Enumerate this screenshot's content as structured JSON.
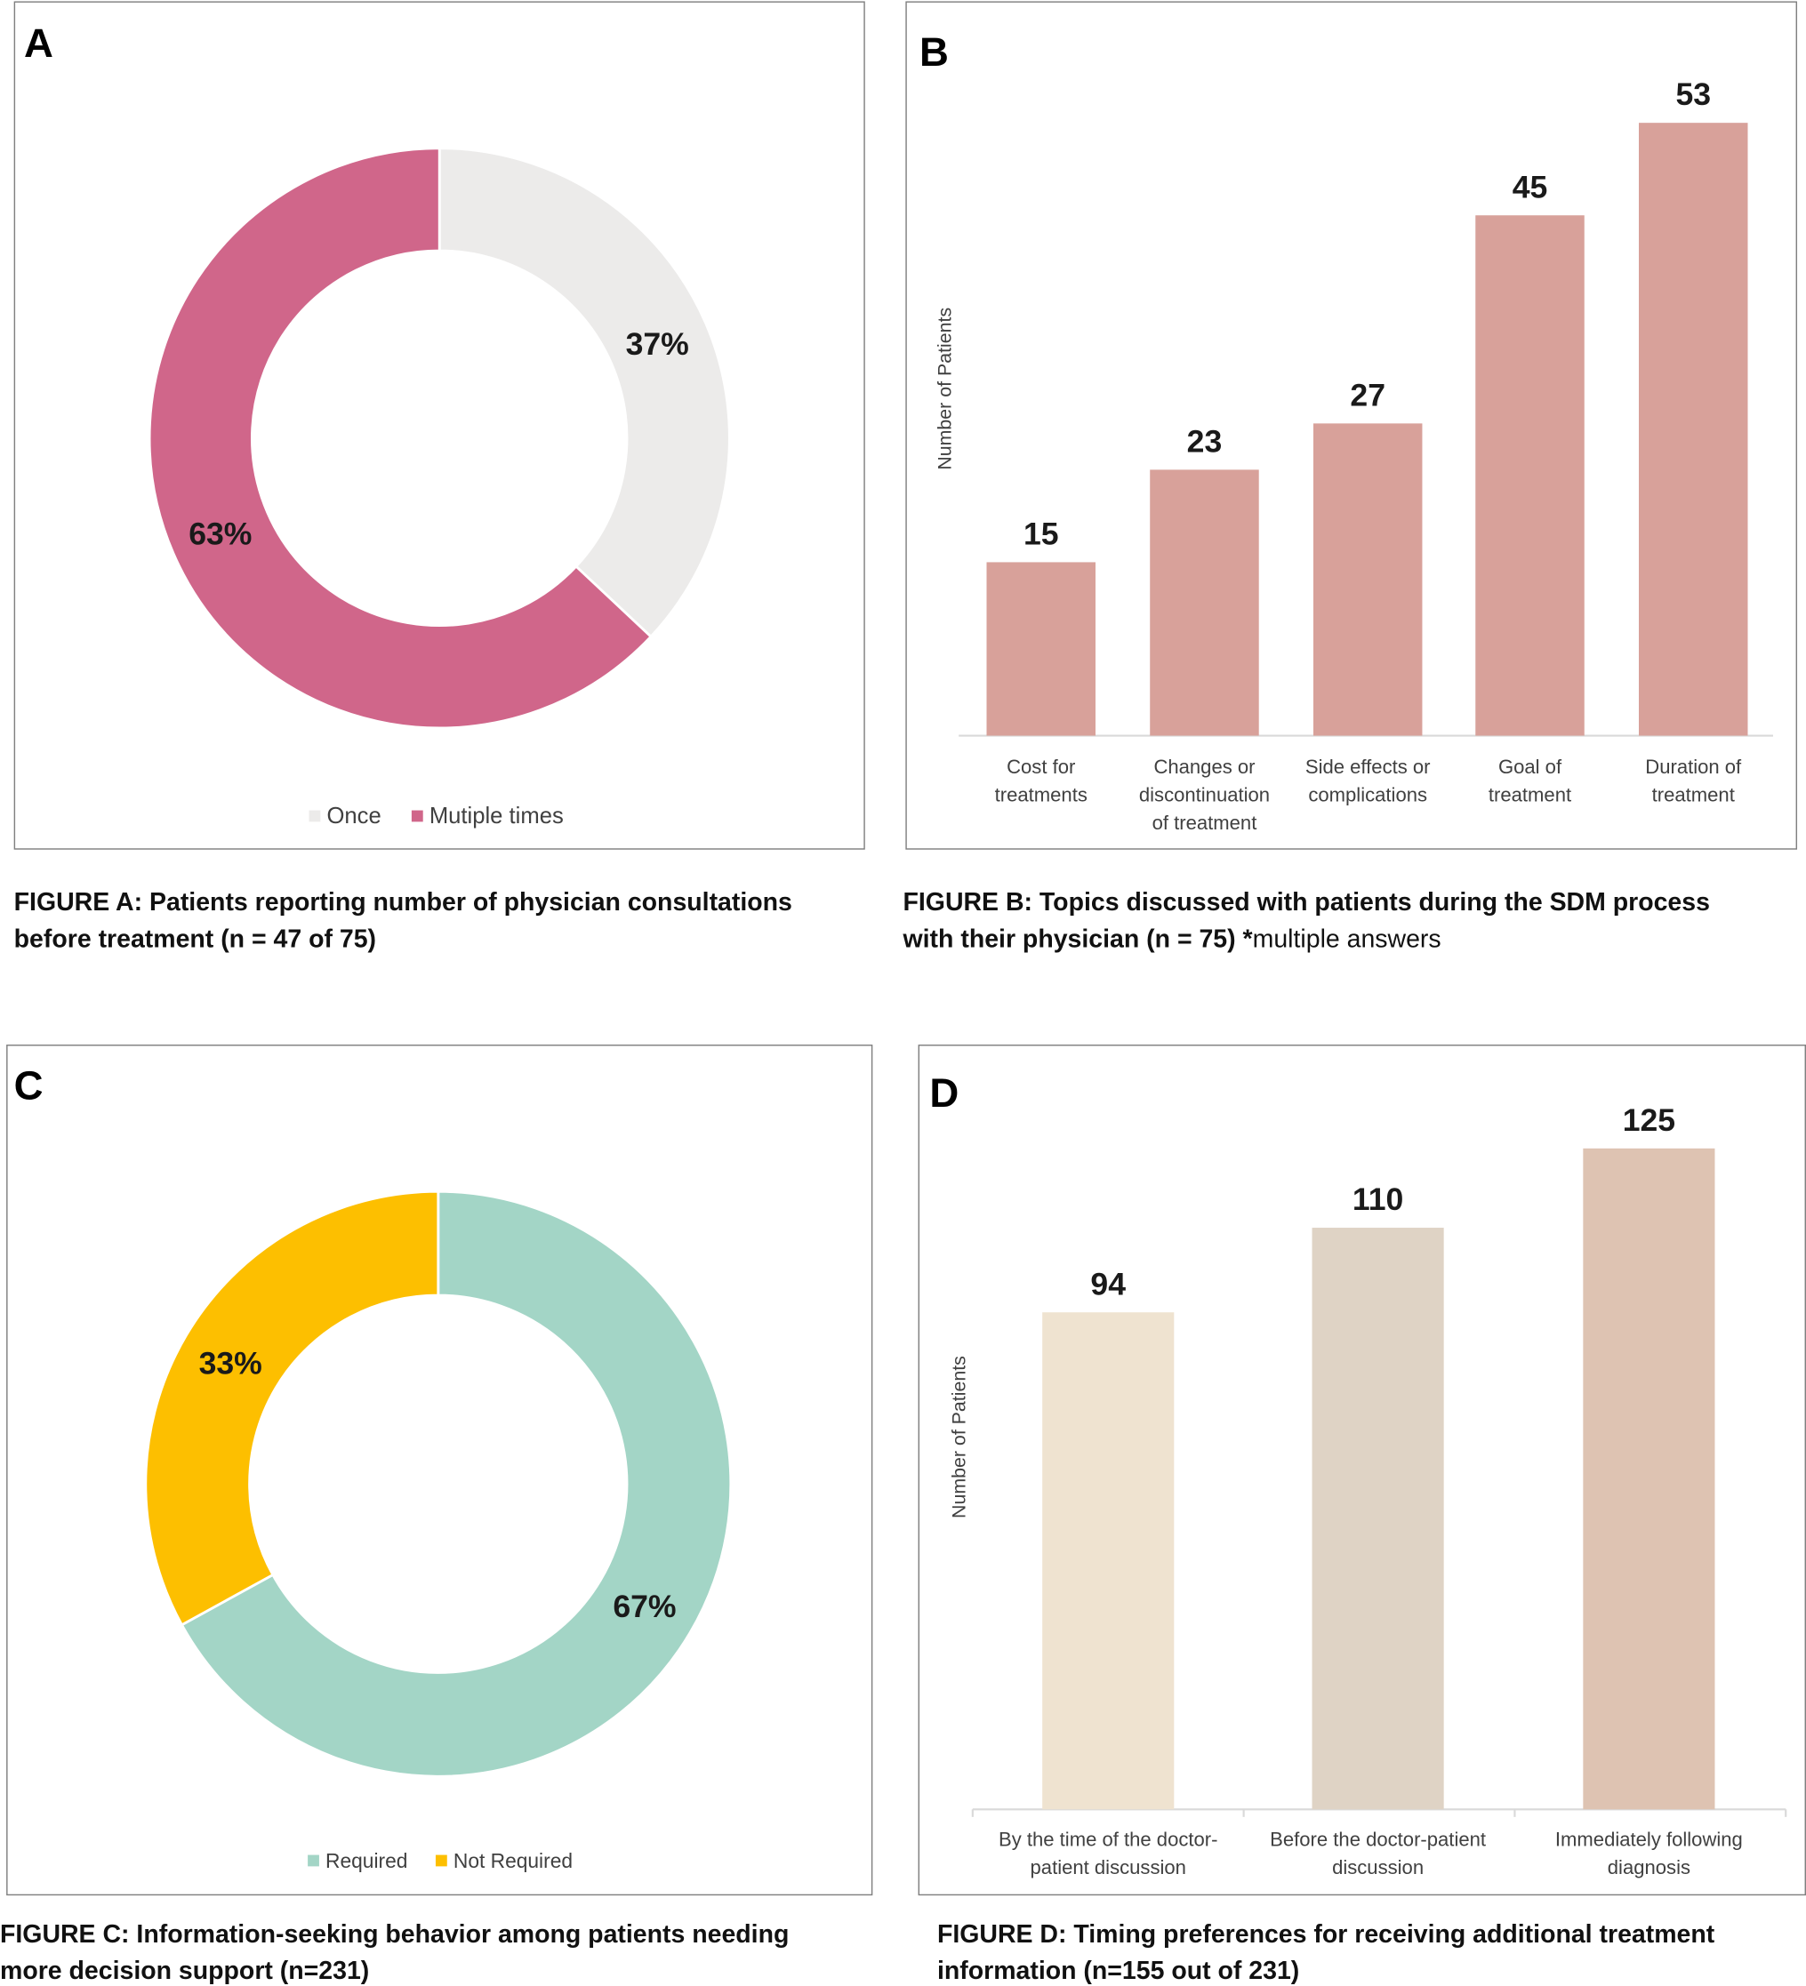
{
  "chart_data": [
    {
      "id": "A",
      "type": "pie",
      "panel_label": "A",
      "donut": true,
      "slices": [
        {
          "name": "Once",
          "value": 37,
          "label": "37%",
          "color": "#ecebea"
        },
        {
          "name": "Mutiple times",
          "value": 63,
          "label": "63%",
          "color": "#d0668a"
        }
      ],
      "legend": "bottom",
      "caption_bold": "FIGURE A: Patients reporting number of physician consultations",
      "caption_bold2": "before treatment (n = 47 of 75)"
    },
    {
      "id": "B",
      "type": "bar",
      "panel_label": "B",
      "ylabel": "Number of Patients",
      "categories": [
        [
          "Cost for",
          "treatments"
        ],
        [
          "Changes or",
          "discontinuation",
          "of treatment"
        ],
        [
          "Side effects or",
          "complications"
        ],
        [
          "Goal of",
          "treatment"
        ],
        [
          "Duration of",
          "treatment"
        ]
      ],
      "values": [
        15,
        23,
        27,
        45,
        53
      ],
      "ylim": [
        0,
        53
      ],
      "color": "#d8a19a",
      "caption_bold": "FIGURE B: Topics discussed with patients during the SDM process",
      "caption_bold2": "with their physician (n = 75) *",
      "caption_normal": "multiple answers"
    },
    {
      "id": "C",
      "type": "pie",
      "panel_label": "C",
      "donut": true,
      "slices": [
        {
          "name": "Required",
          "value": 67,
          "label": "67%",
          "color": "#a3d5c6"
        },
        {
          "name": "Not Required",
          "value": 33,
          "label": "33%",
          "color": "#fdbf00"
        }
      ],
      "legend": "bottom",
      "caption_bold": "FIGURE C: Information-seeking behavior among patients needing",
      "caption_bold2": "more decision support (n=231)"
    },
    {
      "id": "D",
      "type": "bar",
      "panel_label": "D",
      "ylabel": "Number of Patients",
      "categories": [
        [
          "By the time of the doctor-",
          "patient discussion"
        ],
        [
          "Before the doctor-patient",
          "discussion"
        ],
        [
          "Immediately following",
          "diagnosis"
        ]
      ],
      "values": [
        94,
        110,
        125
      ],
      "ylim": [
        0,
        125
      ],
      "colors": [
        "#efe3d0",
        "#dfd3c5",
        "#dec3b2"
      ],
      "caption_bold": "FIGURE D: Timing preferences for receiving additional treatment",
      "caption_bold2": "information (n=155 out of 231)"
    }
  ]
}
